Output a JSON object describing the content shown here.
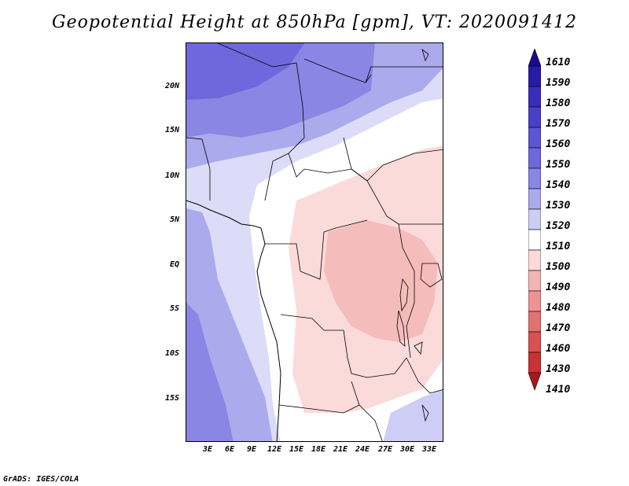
{
  "title": "Geopotential Height at 850hPa [gpm], VT: 2020091412",
  "footer": "GrADS: IGES/COLA",
  "lat_labels": [
    "20N",
    "15N",
    "10N",
    "5N",
    "EQ",
    "5S",
    "10S",
    "15S"
  ],
  "lon_labels": [
    "3E",
    "6E",
    "9E",
    "12E",
    "15E",
    "18E",
    "21E",
    "24E",
    "27E",
    "30E",
    "33E"
  ],
  "colorbar": {
    "levels": [
      "1610",
      "1590",
      "1580",
      "1570",
      "1560",
      "1550",
      "1540",
      "1530",
      "1520",
      "1510",
      "1500",
      "1490",
      "1480",
      "1470",
      "1460",
      "1430",
      "1410"
    ],
    "colors": [
      "#1c0a8c",
      "#2a1aa8",
      "#3a2cbc",
      "#4a40c8",
      "#5c54d2",
      "#6e68dc",
      "#8a86e4",
      "#aaaaec",
      "#cdcdf6",
      "#ffffff",
      "#fbdada",
      "#f4b4b4",
      "#ec9494",
      "#e27272",
      "#d85252",
      "#c83232",
      "#a81a1a"
    ]
  },
  "map": {
    "region": "Central Africa",
    "variable": "Geopotential Height at 850hPa",
    "units": "gpm",
    "valid_time": "2020091412"
  }
}
